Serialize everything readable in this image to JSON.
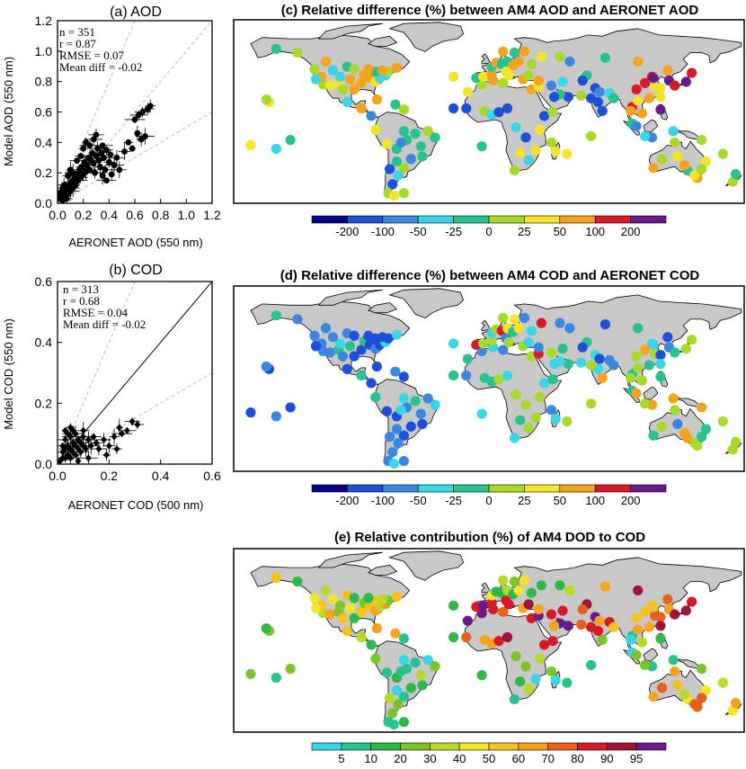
{
  "chart_data": [
    {
      "type": "scatter",
      "title": "(a) AOD",
      "xlabel": "AERONET AOD (550 nm)",
      "ylabel": "Model AOD (550 nm)",
      "xlim": [
        0,
        1.2
      ],
      "ylim": [
        0,
        1.2
      ],
      "xticks": [
        "0.0",
        "0.2",
        "0.4",
        "0.6",
        "0.8",
        "1.0",
        "1.2"
      ],
      "yticks": [
        "0.0",
        "0.2",
        "0.4",
        "0.6",
        "0.8",
        "1.0",
        "1.2"
      ],
      "stats": [
        "n = 351",
        "r = 0.87",
        "RMSE = 0.07",
        "Mean diff = -0.02"
      ],
      "points": [
        [
          0.02,
          0.03
        ],
        [
          0.03,
          0.05
        ],
        [
          0.04,
          0.02
        ],
        [
          0.05,
          0.08
        ],
        [
          0.06,
          0.05
        ],
        [
          0.07,
          0.09
        ],
        [
          0.08,
          0.06
        ],
        [
          0.09,
          0.12
        ],
        [
          0.1,
          0.08
        ],
        [
          0.11,
          0.14
        ],
        [
          0.12,
          0.1
        ],
        [
          0.13,
          0.16
        ],
        [
          0.14,
          0.12
        ],
        [
          0.15,
          0.19
        ],
        [
          0.16,
          0.15
        ],
        [
          0.17,
          0.22
        ],
        [
          0.18,
          0.17
        ],
        [
          0.19,
          0.24
        ],
        [
          0.2,
          0.19
        ],
        [
          0.21,
          0.27
        ],
        [
          0.22,
          0.21
        ],
        [
          0.23,
          0.25
        ],
        [
          0.24,
          0.3
        ],
        [
          0.25,
          0.22
        ],
        [
          0.26,
          0.28
        ],
        [
          0.27,
          0.33
        ],
        [
          0.28,
          0.26
        ],
        [
          0.29,
          0.2
        ],
        [
          0.3,
          0.31
        ],
        [
          0.31,
          0.36
        ],
        [
          0.32,
          0.28
        ],
        [
          0.33,
          0.24
        ],
        [
          0.34,
          0.33
        ],
        [
          0.35,
          0.38
        ],
        [
          0.36,
          0.3
        ],
        [
          0.37,
          0.22
        ],
        [
          0.38,
          0.35
        ],
        [
          0.4,
          0.27
        ],
        [
          0.41,
          0.32
        ],
        [
          0.42,
          0.19
        ],
        [
          0.44,
          0.25
        ],
        [
          0.46,
          0.3
        ],
        [
          0.48,
          0.22
        ],
        [
          0.52,
          0.34
        ],
        [
          0.55,
          0.4
        ],
        [
          0.58,
          0.36
        ],
        [
          0.6,
          0.55
        ],
        [
          0.63,
          0.58
        ],
        [
          0.66,
          0.6
        ],
        [
          0.7,
          0.62
        ],
        [
          0.72,
          0.64
        ],
        [
          0.65,
          0.42
        ],
        [
          0.62,
          0.46
        ],
        [
          0.68,
          0.44
        ],
        [
          0.12,
          0.2
        ],
        [
          0.15,
          0.28
        ],
        [
          0.18,
          0.31
        ],
        [
          0.2,
          0.36
        ],
        [
          0.22,
          0.4
        ],
        [
          0.25,
          0.38
        ],
        [
          0.28,
          0.42
        ],
        [
          0.3,
          0.45
        ],
        [
          0.05,
          0.12
        ],
        [
          0.08,
          0.18
        ],
        [
          0.1,
          0.22
        ],
        [
          0.35,
          0.18
        ],
        [
          0.38,
          0.15
        ],
        [
          0.02,
          0.07
        ],
        [
          0.04,
          0.1
        ],
        [
          0.07,
          0.03
        ]
      ]
    },
    {
      "type": "scatter",
      "title": "(b) COD",
      "xlabel": "AERONET COD (500 nm)",
      "ylabel": "Model COD (550 nm)",
      "xlim": [
        0,
        0.6
      ],
      "ylim": [
        0,
        0.6
      ],
      "xticks": [
        "0.0",
        "0.2",
        "0.4",
        "0.6"
      ],
      "yticks": [
        "0.0",
        "0.2",
        "0.4",
        "0.6"
      ],
      "stats": [
        "n = 313",
        "r = 0.68",
        "RMSE = 0.04",
        "Mean diff = -0.02"
      ],
      "points": [
        [
          0.01,
          0.01
        ],
        [
          0.02,
          0.02
        ],
        [
          0.02,
          0.04
        ],
        [
          0.03,
          0.02
        ],
        [
          0.03,
          0.05
        ],
        [
          0.04,
          0.03
        ],
        [
          0.04,
          0.06
        ],
        [
          0.05,
          0.02
        ],
        [
          0.05,
          0.05
        ],
        [
          0.06,
          0.04
        ],
        [
          0.06,
          0.07
        ],
        [
          0.07,
          0.03
        ],
        [
          0.07,
          0.06
        ],
        [
          0.08,
          0.05
        ],
        [
          0.08,
          0.08
        ],
        [
          0.09,
          0.04
        ],
        [
          0.09,
          0.07
        ],
        [
          0.1,
          0.06
        ],
        [
          0.1,
          0.09
        ],
        [
          0.11,
          0.05
        ],
        [
          0.12,
          0.08
        ],
        [
          0.13,
          0.06
        ],
        [
          0.14,
          0.09
        ],
        [
          0.15,
          0.07
        ],
        [
          0.04,
          0.1
        ],
        [
          0.05,
          0.12
        ],
        [
          0.06,
          0.11
        ],
        [
          0.03,
          0.08
        ],
        [
          0.16,
          0.05
        ],
        [
          0.18,
          0.08
        ],
        [
          0.2,
          0.06
        ],
        [
          0.22,
          0.09
        ],
        [
          0.24,
          0.12
        ],
        [
          0.25,
          0.1
        ],
        [
          0.27,
          0.11
        ],
        [
          0.29,
          0.14
        ],
        [
          0.31,
          0.13
        ],
        [
          0.23,
          0.05
        ],
        [
          0.19,
          0.03
        ],
        [
          0.08,
          0.01
        ],
        [
          0.12,
          0.02
        ],
        [
          0.05,
          0.09
        ],
        [
          0.07,
          0.1
        ],
        [
          0.1,
          0.11
        ],
        [
          0.02,
          0.06
        ],
        [
          0.03,
          0.11
        ]
      ]
    },
    {
      "type": "map",
      "title": "(c) Relative difference (%) between AM4 AOD and AERONET AOD",
      "colorbar_labels": [
        "-200",
        "-100",
        "-50",
        "-25",
        "0",
        "25",
        "50",
        "100",
        "200"
      ],
      "colors": [
        "#00008b",
        "#1e4fd8",
        "#3a86e0",
        "#3ad6e8",
        "#27c28e",
        "#a7d82a",
        "#f2e52a",
        "#f4a31c",
        "#d71a2a",
        "#6a1a8a"
      ]
    },
    {
      "type": "map",
      "title": "(d) Relative difference (%) between AM4 COD and AERONET COD",
      "colorbar_labels": [
        "-200",
        "-100",
        "-50",
        "-25",
        "0",
        "25",
        "50",
        "100",
        "200"
      ],
      "colors": [
        "#00008b",
        "#1e4fd8",
        "#3a86e0",
        "#3ad6e8",
        "#27c28e",
        "#a7d82a",
        "#f2e52a",
        "#f4a31c",
        "#d71a2a",
        "#6a1a8a"
      ]
    },
    {
      "type": "map",
      "title": "(e) Relative contribution (%) of AM4 DOD to COD",
      "colorbar_labels": [
        "5",
        "10",
        "20",
        "30",
        "40",
        "50",
        "60",
        "70",
        "80",
        "90",
        "95"
      ],
      "colors": [
        "#3ad6e8",
        "#27c28e",
        "#2eb84a",
        "#7cc42a",
        "#b8d82a",
        "#f2e52a",
        "#f4c21c",
        "#f4a31c",
        "#e8601c",
        "#d71a2a",
        "#a0143a",
        "#6a1a8a"
      ]
    }
  ]
}
